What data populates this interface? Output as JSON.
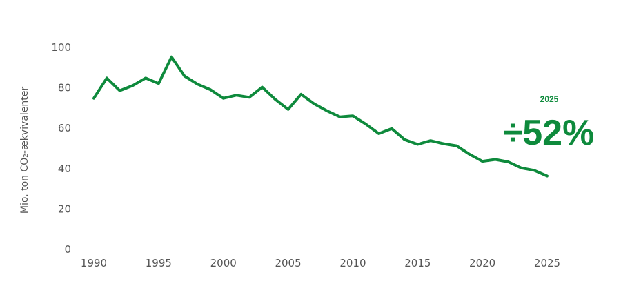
{
  "chart_data": {
    "type": "line",
    "title": "",
    "xlabel": "",
    "ylabel": "Mio. ton CO₂-ækvivalenter",
    "xlim": [
      1990,
      2025
    ],
    "ylim": [
      0,
      100
    ],
    "x_ticks": [
      1990,
      1995,
      2000,
      2005,
      2010,
      2015,
      2020,
      2025
    ],
    "y_ticks": [
      0,
      20,
      40,
      60,
      80,
      100
    ],
    "grid": false,
    "line_color": "#0e8a3c",
    "series": [
      {
        "x": [
          1990,
          1991,
          1992,
          1993,
          1994,
          1995,
          1996,
          1997,
          1998,
          1999,
          2000,
          2001,
          2002,
          2003,
          2004,
          2005,
          2006,
          2007,
          2008,
          2009,
          2010,
          2011,
          2012,
          2013,
          2014,
          2015,
          2016,
          2017,
          2018,
          2019,
          2020,
          2021,
          2022,
          2023,
          2024,
          2025
        ],
        "values": [
          74.5,
          84.5,
          78.3,
          80.8,
          84.5,
          81.8,
          95.0,
          85.5,
          81.5,
          78.8,
          74.5,
          76.0,
          75.0,
          80.0,
          74.0,
          69.0,
          76.5,
          71.8,
          68.3,
          65.3,
          65.8,
          61.7,
          57.0,
          59.5,
          54.0,
          51.7,
          53.5,
          52.0,
          51.0,
          46.8,
          43.3,
          44.2,
          43.0,
          40.0,
          38.8,
          36.0
        ]
      }
    ],
    "annotations": [
      {
        "year_label": "2025",
        "value_label": "÷52%"
      }
    ]
  }
}
